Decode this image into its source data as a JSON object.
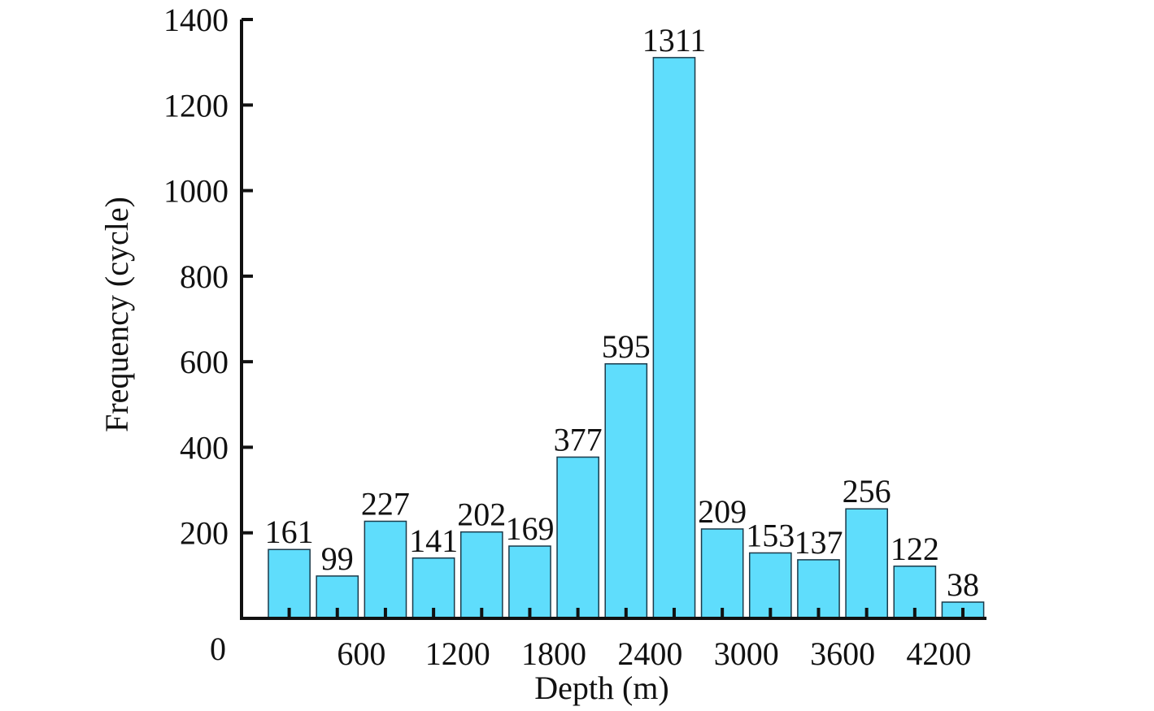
{
  "chart_data": {
    "type": "bar",
    "title": "",
    "xlabel": "Depth (m)",
    "ylabel": "Frequency (cycle)",
    "ylim": [
      0,
      1400
    ],
    "yticks": [
      "200",
      "400",
      "600",
      "800",
      "1000",
      "1200",
      "1400"
    ],
    "origin_label": "0",
    "xticks": [
      "600",
      "1200",
      "1800",
      "2400",
      "3000",
      "3600",
      "4200"
    ],
    "xtick_values": [
      600,
      1200,
      1800,
      2400,
      3000,
      3600,
      4200
    ],
    "bin_width": 300,
    "bin_starts": [
      0,
      300,
      600,
      900,
      1200,
      1500,
      1800,
      2100,
      2400,
      2700,
      3000,
      3300,
      3600,
      3900,
      4200
    ],
    "values": [
      161,
      99,
      227,
      141,
      202,
      169,
      377,
      595,
      1311,
      209,
      153,
      137,
      256,
      122,
      38
    ],
    "data_labels": [
      "161",
      "99",
      "227",
      "141",
      "202",
      "169",
      "377",
      "595",
      "1311",
      "209",
      "153",
      "137",
      "256",
      "122",
      "38"
    ],
    "grid": false,
    "legend": "none",
    "bar_color": "#5fddfc",
    "bar_edge_color": "#1a3a4a"
  }
}
